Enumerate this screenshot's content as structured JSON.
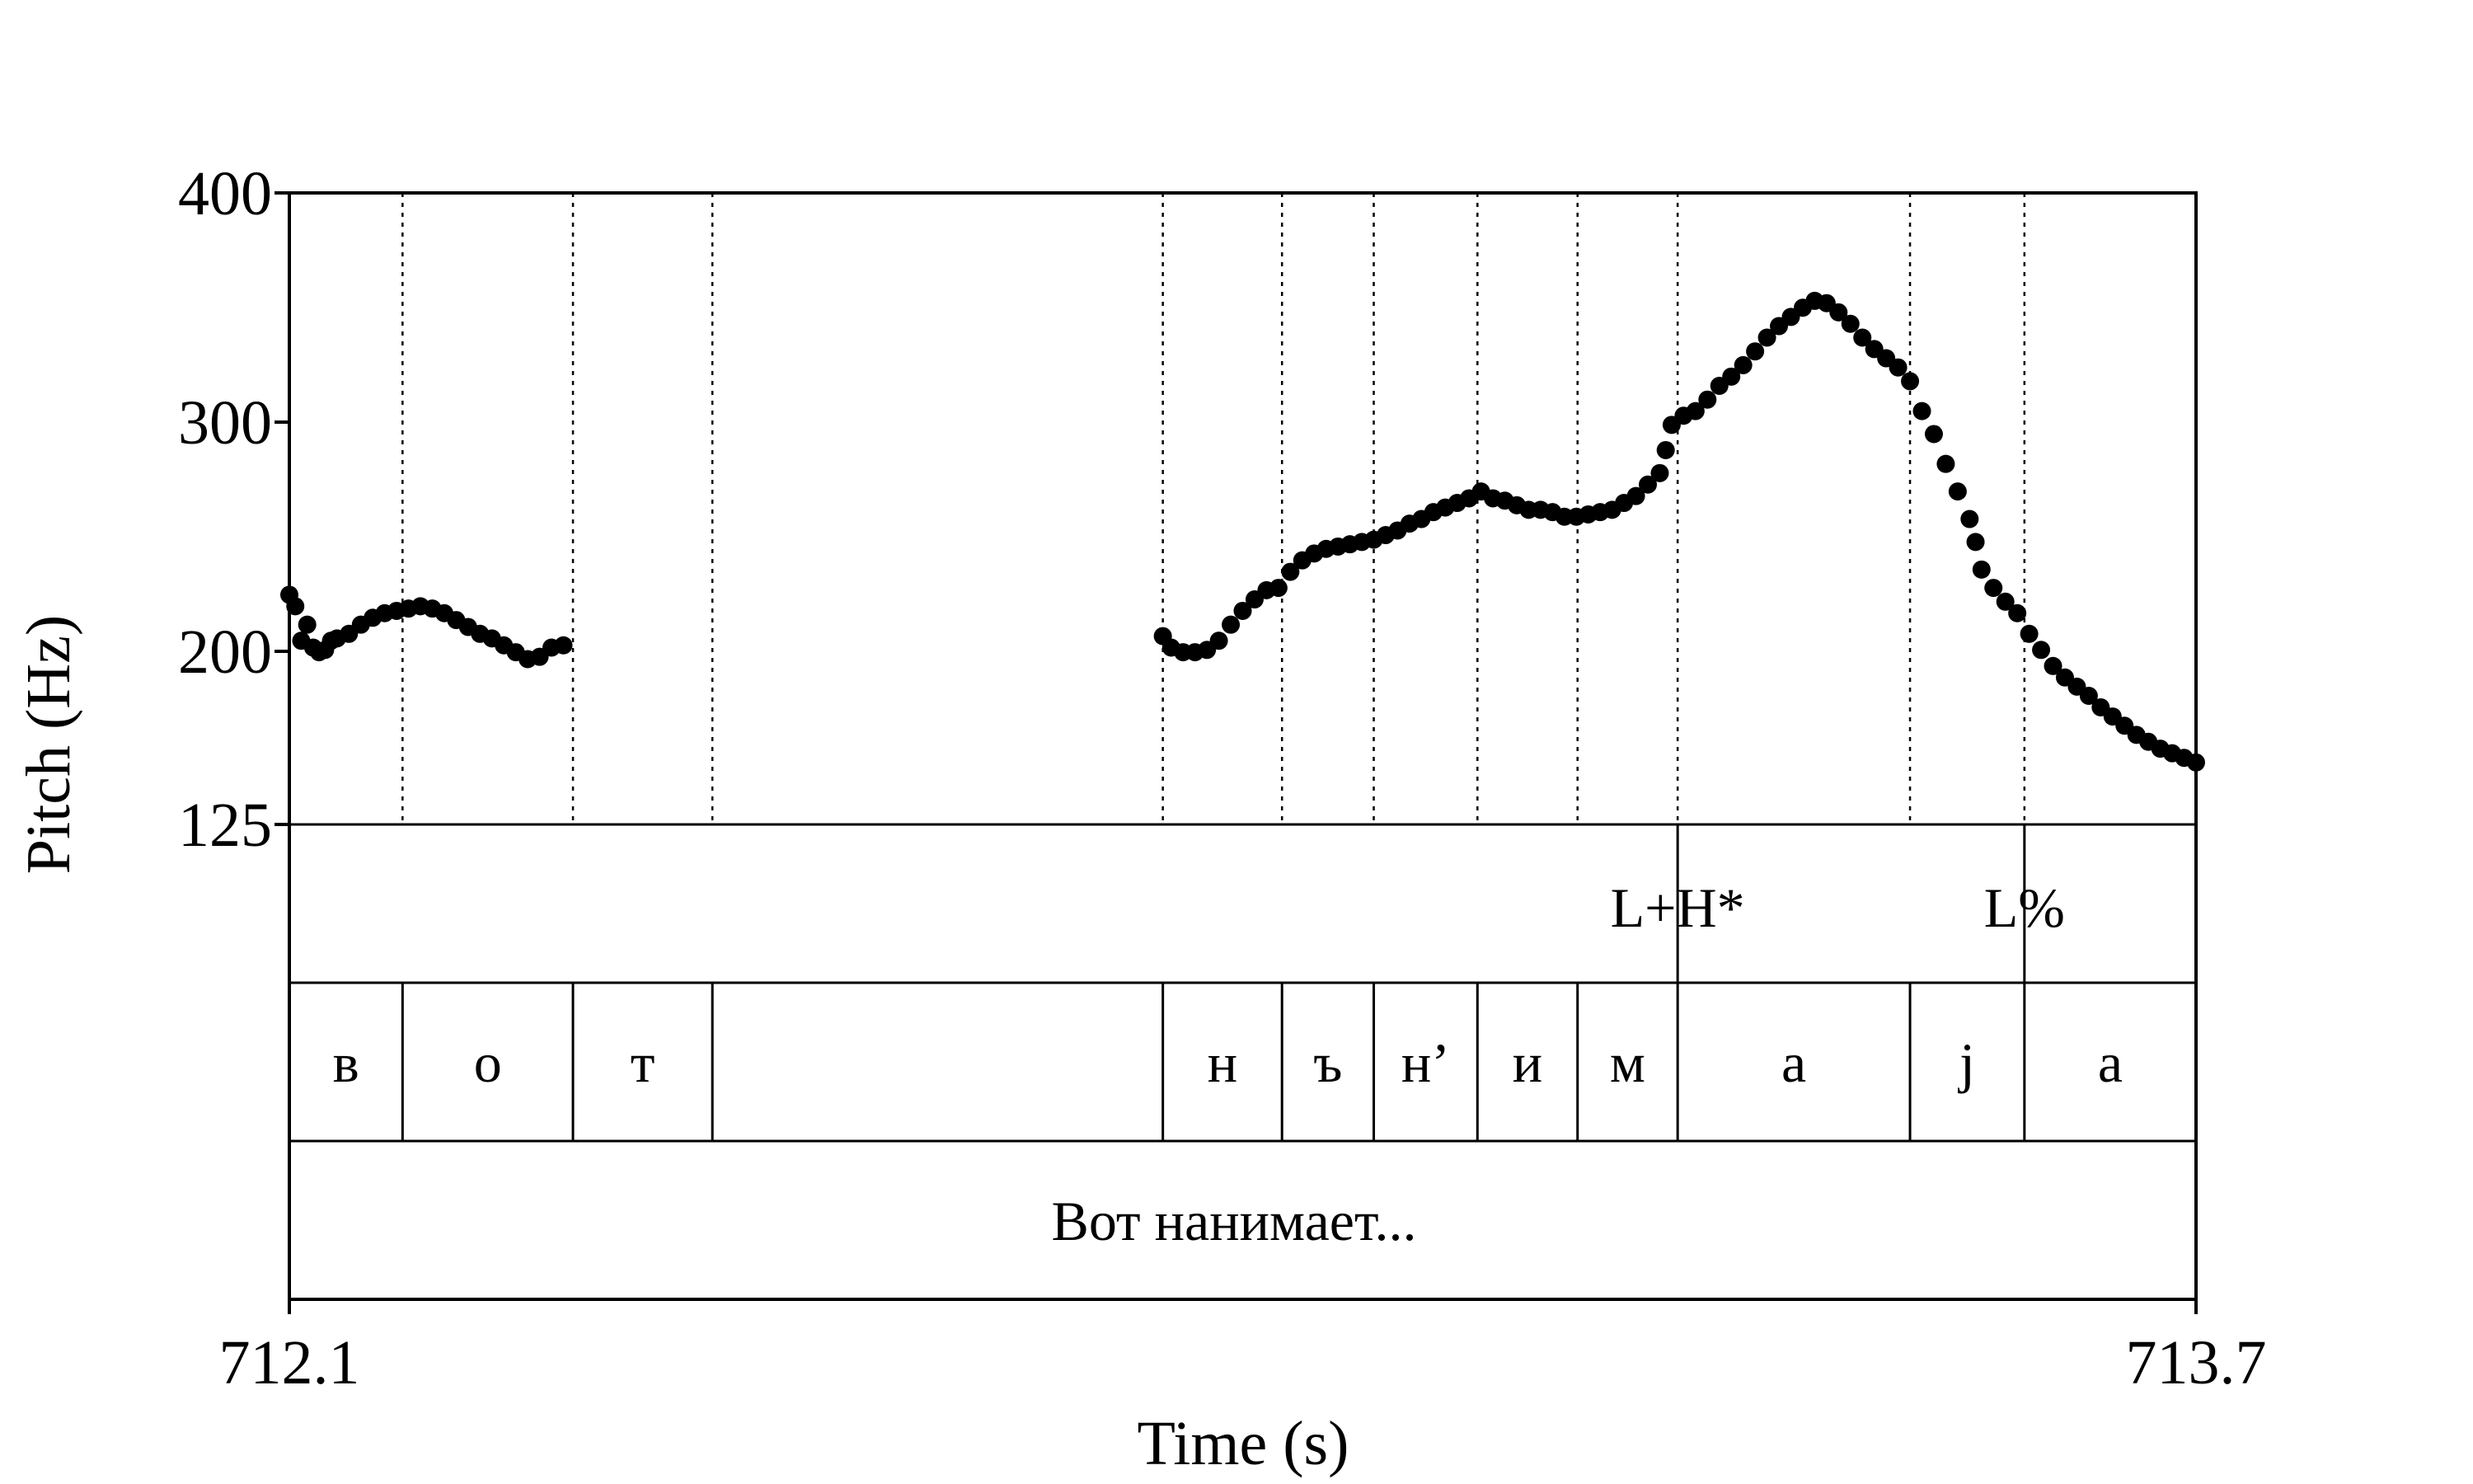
{
  "chart_data": {
    "type": "scatter",
    "ylabel": "Pitch (Hz)",
    "xlabel": "Time (s)",
    "xlim": [
      712.1,
      713.7
    ],
    "ylim": [
      125,
      400
    ],
    "y_ticks": [
      "400",
      "300",
      "200",
      "125"
    ],
    "x_ticks": [
      "712.1",
      "713.7"
    ],
    "grid": false,
    "boundaries": [
      712.195,
      712.338,
      712.455,
      712.833,
      712.933,
      713.01,
      713.097,
      713.181,
      713.265,
      713.46,
      713.556
    ],
    "tones": [
      {
        "label": "L+H*",
        "time": 713.265
      },
      {
        "label": "L%",
        "time": 713.556
      }
    ],
    "segments": [
      {
        "label": "в",
        "start": 712.1,
        "end": 712.195
      },
      {
        "label": "о",
        "start": 712.195,
        "end": 712.338
      },
      {
        "label": "т",
        "start": 712.338,
        "end": 712.455
      },
      {
        "label": "",
        "start": 712.455,
        "end": 712.833
      },
      {
        "label": "н",
        "start": 712.833,
        "end": 712.933
      },
      {
        "label": "ъ",
        "start": 712.933,
        "end": 713.01
      },
      {
        "label": "н’",
        "start": 713.01,
        "end": 713.097
      },
      {
        "label": "и",
        "start": 713.097,
        "end": 713.181
      },
      {
        "label": "м",
        "start": 713.181,
        "end": 713.265
      },
      {
        "label": "а",
        "start": 713.265,
        "end": 713.46
      },
      {
        "label": "j",
        "start": 713.46,
        "end": 713.556
      },
      {
        "label": "а",
        "start": 713.556,
        "end": 713.7
      }
    ],
    "utterance": "Вот нанимает...",
    "series": [
      {
        "points": [
          [
            712.1,
            225
          ],
          [
            712.105,
            220
          ],
          [
            712.11,
            205
          ],
          [
            712.115,
            212
          ],
          [
            712.12,
            202
          ],
          [
            712.125,
            200
          ],
          [
            712.13,
            201
          ],
          [
            712.135,
            205
          ],
          [
            712.14,
            206
          ],
          [
            712.15,
            208
          ],
          [
            712.16,
            212
          ],
          [
            712.17,
            215
          ],
          [
            712.18,
            217
          ],
          [
            712.19,
            218
          ],
          [
            712.2,
            219
          ],
          [
            712.21,
            220
          ],
          [
            712.22,
            219
          ],
          [
            712.23,
            217
          ],
          [
            712.24,
            214
          ],
          [
            712.25,
            211
          ],
          [
            712.26,
            208
          ],
          [
            712.27,
            206
          ],
          [
            712.28,
            203
          ],
          [
            712.29,
            200
          ],
          [
            712.3,
            197
          ],
          [
            712.31,
            198
          ],
          [
            712.32,
            202
          ],
          [
            712.33,
            203
          ],
          [
            712.833,
            207
          ],
          [
            712.84,
            202
          ],
          [
            712.85,
            200
          ],
          [
            712.86,
            200
          ],
          [
            712.87,
            201
          ],
          [
            712.88,
            205
          ],
          [
            712.89,
            212
          ],
          [
            712.9,
            218
          ],
          [
            712.91,
            223
          ],
          [
            712.92,
            227
          ],
          [
            712.93,
            228
          ],
          [
            712.94,
            235
          ],
          [
            712.95,
            240
          ],
          [
            712.96,
            243
          ],
          [
            712.97,
            245
          ],
          [
            712.98,
            246
          ],
          [
            712.99,
            247
          ],
          [
            713.0,
            248
          ],
          [
            713.01,
            249
          ],
          [
            713.02,
            251
          ],
          [
            713.03,
            253
          ],
          [
            713.04,
            256
          ],
          [
            713.05,
            258
          ],
          [
            713.06,
            261
          ],
          [
            713.07,
            263
          ],
          [
            713.08,
            265
          ],
          [
            713.09,
            267
          ],
          [
            713.1,
            270
          ],
          [
            713.11,
            267
          ],
          [
            713.12,
            266
          ],
          [
            713.13,
            264
          ],
          [
            713.14,
            262
          ],
          [
            713.15,
            262
          ],
          [
            713.16,
            261
          ],
          [
            713.17,
            259
          ],
          [
            713.18,
            259
          ],
          [
            713.19,
            260
          ],
          [
            713.2,
            261
          ],
          [
            713.21,
            262
          ],
          [
            713.22,
            265
          ],
          [
            713.23,
            268
          ],
          [
            713.24,
            273
          ],
          [
            713.25,
            278
          ],
          [
            713.255,
            288
          ],
          [
            713.26,
            299
          ],
          [
            713.27,
            303
          ],
          [
            713.28,
            305
          ],
          [
            713.29,
            310
          ],
          [
            713.3,
            316
          ],
          [
            713.31,
            320
          ],
          [
            713.32,
            325
          ],
          [
            713.33,
            331
          ],
          [
            713.34,
            337
          ],
          [
            713.35,
            342
          ],
          [
            713.36,
            346
          ],
          [
            713.37,
            350
          ],
          [
            713.38,
            353
          ],
          [
            713.39,
            352
          ],
          [
            713.4,
            348
          ],
          [
            713.41,
            343
          ],
          [
            713.42,
            337
          ],
          [
            713.43,
            332
          ],
          [
            713.44,
            328
          ],
          [
            713.45,
            324
          ],
          [
            713.46,
            318
          ],
          [
            713.47,
            305
          ],
          [
            713.48,
            295
          ],
          [
            713.49,
            282
          ],
          [
            713.5,
            270
          ],
          [
            713.51,
            258
          ],
          [
            713.515,
            248
          ],
          [
            713.52,
            236
          ],
          [
            713.53,
            228
          ],
          [
            713.54,
            222
          ],
          [
            713.55,
            217
          ],
          [
            713.56,
            208
          ],
          [
            713.57,
            201
          ],
          [
            713.58,
            194
          ],
          [
            713.59,
            189
          ],
          [
            713.6,
            185
          ],
          [
            713.61,
            181
          ],
          [
            713.62,
            176
          ],
          [
            713.63,
            172
          ],
          [
            713.64,
            168
          ],
          [
            713.65,
            164
          ],
          [
            713.66,
            161
          ],
          [
            713.67,
            158
          ],
          [
            713.68,
            156
          ],
          [
            713.69,
            154
          ],
          [
            713.7,
            152
          ]
        ]
      }
    ]
  }
}
